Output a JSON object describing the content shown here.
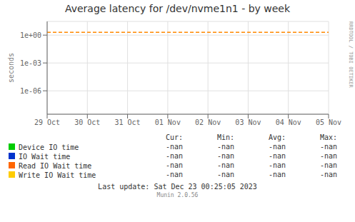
{
  "chart_data": {
    "type": "line",
    "title": "Average latency for /dev/nvme1n1 - by week",
    "y_label": "seconds",
    "categories": [
      "29 Oct",
      "30 Oct",
      "31 Oct",
      "01 Nov",
      "02 Nov",
      "03 Nov",
      "04 Nov",
      "05 Nov"
    ],
    "series": [
      {
        "name": "Device IO time",
        "color": "#00cc00",
        "values": [
          null,
          null,
          null,
          null,
          null,
          null,
          null,
          null
        ]
      },
      {
        "name": "IO Wait time",
        "color": "#0033cc",
        "values": [
          null,
          null,
          null,
          null,
          null,
          null,
          null,
          null
        ]
      },
      {
        "name": "Read IO Wait time",
        "color": "#ff6600",
        "values": [
          null,
          null,
          null,
          null,
          null,
          null,
          null,
          null
        ]
      },
      {
        "name": "Write IO Wait time",
        "color": "#ffcc00",
        "values": [
          null,
          null,
          null,
          null,
          null,
          null,
          null,
          null
        ]
      }
    ],
    "log": "y",
    "ylim": [
      3e-09,
      30
    ],
    "yticks": [
      {
        "value": 1e-06,
        "label": "1e-06"
      },
      {
        "value": 0.001,
        "label": "1e-03"
      },
      {
        "value": 1,
        "label": "1e+00"
      }
    ],
    "grid": true,
    "reference_lines": [
      {
        "y": 2.0,
        "color": "#ff8800",
        "line_style": "dashed"
      }
    ],
    "legend_table": {
      "headers": [
        "Cur:",
        "Min:",
        "Avg:",
        "Max:"
      ],
      "rows": [
        [
          "-nan",
          "-nan",
          "-nan",
          "-nan"
        ],
        [
          "-nan",
          "-nan",
          "-nan",
          "-nan"
        ],
        [
          "-nan",
          "-nan",
          "-nan",
          "-nan"
        ],
        [
          "-nan",
          "-nan",
          "-nan",
          "-nan"
        ]
      ]
    },
    "footer": [
      "Last update: Sat Dec 23 00:25:05 2023",
      "Munin 2.0.56"
    ],
    "side_text": "RRDTOOL / TOBI OETIKER"
  }
}
